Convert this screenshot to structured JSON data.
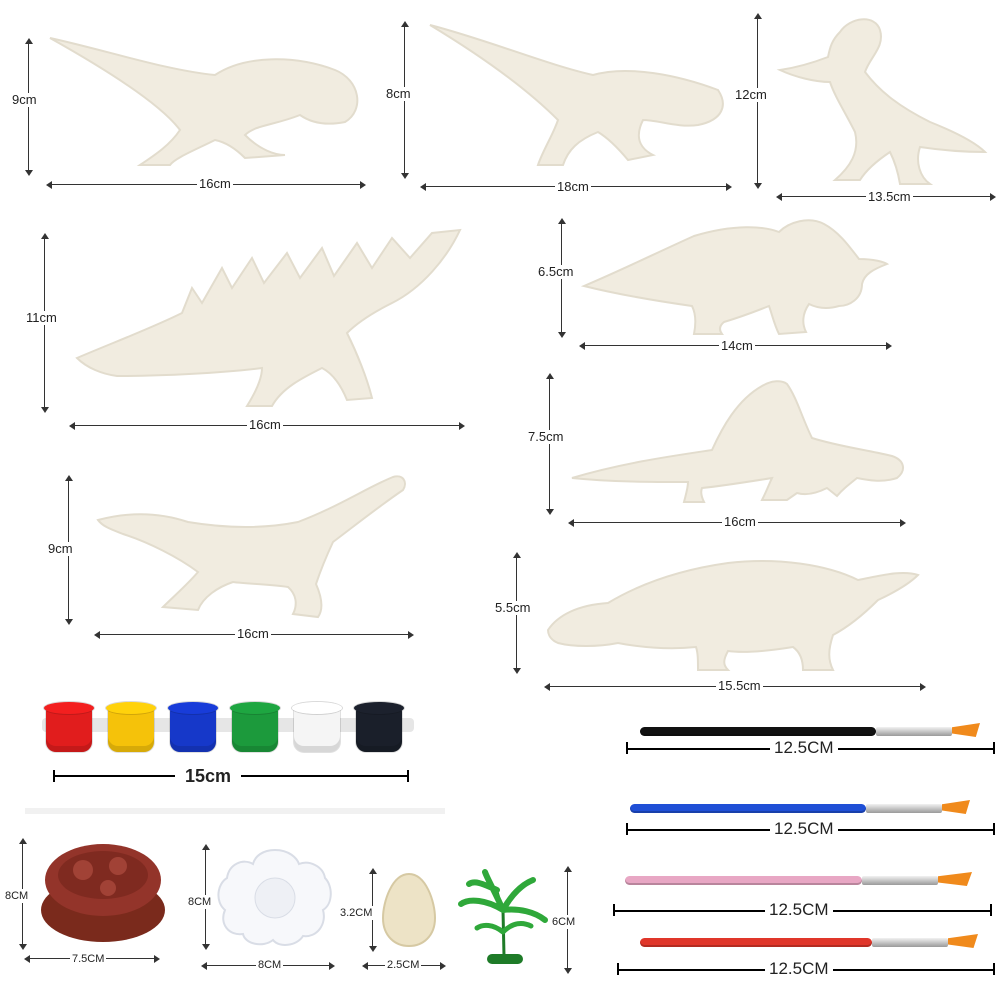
{
  "dinosaurs": [
    {
      "id": "dilophosaurus",
      "height": "9cm",
      "length": "16cm"
    },
    {
      "id": "indominus",
      "height": "8cm",
      "length": "18cm"
    },
    {
      "id": "therizinosaurus",
      "height": "12cm",
      "length": "13.5cm"
    },
    {
      "id": "kentrosaurus",
      "height": "11cm",
      "length": "16cm"
    },
    {
      "id": "triceratops",
      "height": "6.5cm",
      "length": "14cm"
    },
    {
      "id": "dimetrodon",
      "height": "7.5cm",
      "length": "16cm"
    },
    {
      "id": "velociraptor",
      "height": "9cm",
      "length": "16cm"
    },
    {
      "id": "ankylosaurus",
      "height": "5.5cm",
      "length": "15.5cm"
    }
  ],
  "paints": {
    "length": "15cm",
    "colors": [
      "#e11d1d",
      "#f5c20a",
      "#1638c9",
      "#1c9a3c",
      "#f5f5f5",
      "#1a1f2a"
    ]
  },
  "brushes": [
    {
      "length": "12.5CM",
      "handle_color": "#111111"
    },
    {
      "length": "12.5CM",
      "handle_color": "#1f4fd6"
    },
    {
      "length": "12.5CM",
      "handle_color": "#e8a7c4"
    },
    {
      "length": "12.5CM",
      "handle_color": "#e0362a"
    }
  ],
  "accessories": {
    "nest": {
      "height": "8CM",
      "width": "7.5CM"
    },
    "palette": {
      "height": "8CM",
      "width": "8CM"
    },
    "egg": {
      "height": "3.2CM",
      "width": "2.5CM"
    },
    "tree": {
      "height": "6CM"
    }
  }
}
